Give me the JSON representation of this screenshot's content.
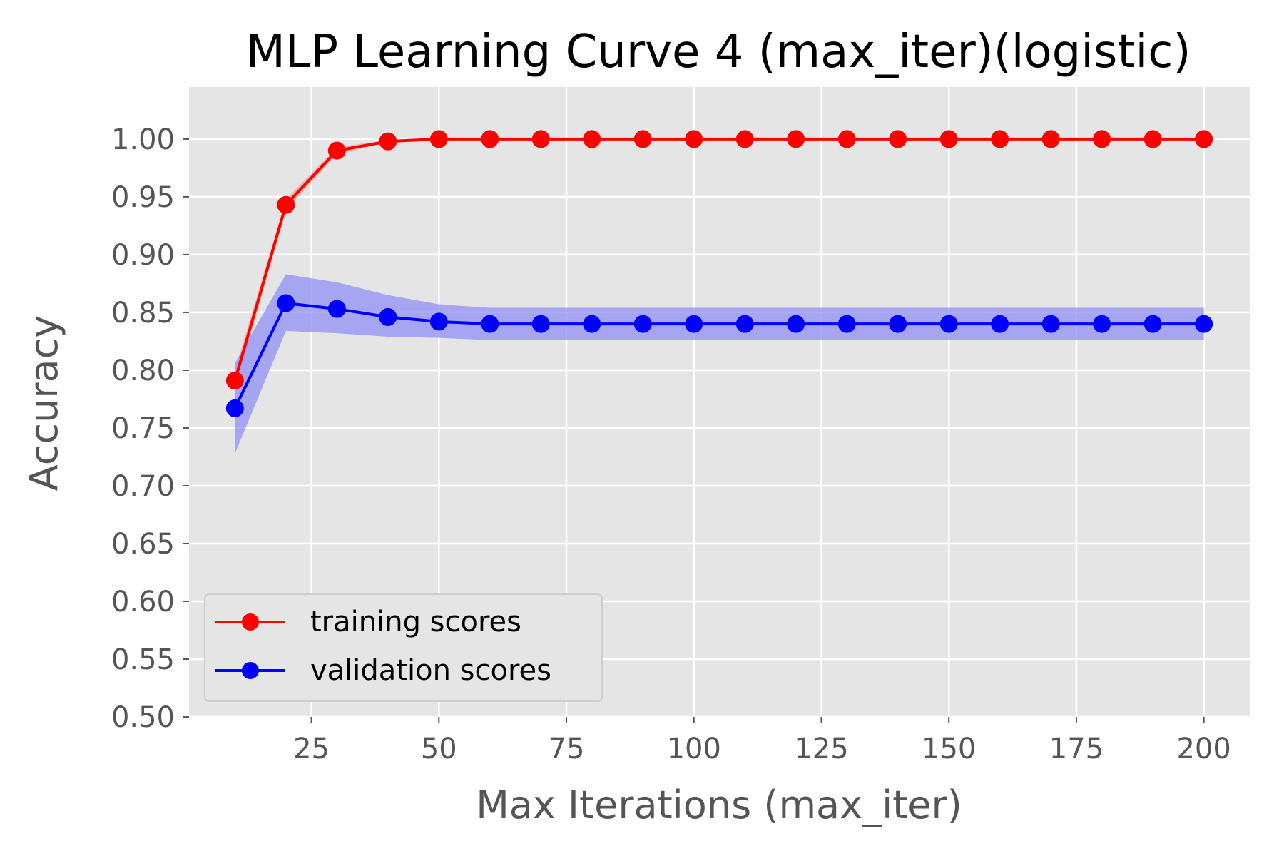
{
  "chart_data": {
    "type": "line",
    "title": "MLP Learning Curve 4 (max_iter)(logistic)",
    "xlabel": "Max Iterations (max_iter)",
    "ylabel": "Accuracy",
    "xlim": [
      1,
      209
    ],
    "ylim": [
      0.5,
      1.045
    ],
    "xticks": [
      25,
      50,
      75,
      100,
      125,
      150,
      175,
      200
    ],
    "xtick_labels": [
      "25",
      "50",
      "75",
      "100",
      "125",
      "150",
      "175",
      "200"
    ],
    "yticks": [
      0.5,
      0.55,
      0.6,
      0.65,
      0.7,
      0.75,
      0.8,
      0.85,
      0.9,
      0.95,
      1.0
    ],
    "ytick_labels": [
      "0.50",
      "0.55",
      "0.60",
      "0.65",
      "0.70",
      "0.75",
      "0.80",
      "0.85",
      "0.90",
      "0.95",
      "1.00"
    ],
    "grid": true,
    "background": "#e5e5e5",
    "legend_position": "lower-left",
    "x": [
      10,
      20,
      30,
      40,
      50,
      60,
      70,
      80,
      90,
      100,
      110,
      120,
      130,
      140,
      150,
      160,
      170,
      180,
      190,
      200
    ],
    "series": [
      {
        "name": "training scores",
        "color": "#ff0000",
        "values": [
          0.791,
          0.943,
          0.99,
          0.998,
          1.0,
          1.0,
          1.0,
          1.0,
          1.0,
          1.0,
          1.0,
          1.0,
          1.0,
          1.0,
          1.0,
          1.0,
          1.0,
          1.0,
          1.0,
          1.0
        ],
        "band_lower": [
          0.782,
          0.938,
          0.987,
          0.997,
          1.0,
          1.0,
          1.0,
          1.0,
          1.0,
          1.0,
          1.0,
          1.0,
          1.0,
          1.0,
          1.0,
          1.0,
          1.0,
          1.0,
          1.0,
          1.0
        ],
        "band_upper": [
          0.8,
          0.948,
          0.993,
          0.999,
          1.0,
          1.0,
          1.0,
          1.0,
          1.0,
          1.0,
          1.0,
          1.0,
          1.0,
          1.0,
          1.0,
          1.0,
          1.0,
          1.0,
          1.0,
          1.0
        ]
      },
      {
        "name": "validation scores",
        "color": "#0000ff",
        "band_color": "#8f8ff5",
        "values": [
          0.767,
          0.858,
          0.853,
          0.846,
          0.842,
          0.84,
          0.84,
          0.84,
          0.84,
          0.84,
          0.84,
          0.84,
          0.84,
          0.84,
          0.84,
          0.84,
          0.84,
          0.84,
          0.84,
          0.84
        ],
        "band_lower": [
          0.728,
          0.834,
          0.832,
          0.829,
          0.828,
          0.826,
          0.826,
          0.826,
          0.826,
          0.826,
          0.826,
          0.826,
          0.826,
          0.826,
          0.826,
          0.826,
          0.826,
          0.826,
          0.826,
          0.826
        ],
        "band_upper": [
          0.806,
          0.883,
          0.876,
          0.865,
          0.857,
          0.854,
          0.854,
          0.854,
          0.854,
          0.854,
          0.854,
          0.854,
          0.854,
          0.854,
          0.854,
          0.854,
          0.854,
          0.854,
          0.854,
          0.854
        ]
      }
    ]
  }
}
